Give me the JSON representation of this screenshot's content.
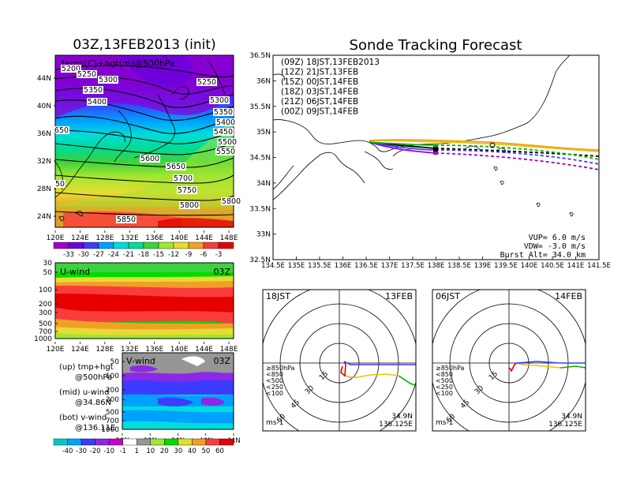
{
  "temp_map": {
    "title": "03Z,13FEB2013 (init)",
    "label": "temp(C)+hgt(m)@500hPa",
    "x_ticks": [
      "120E",
      "124E",
      "128E",
      "132E",
      "136E",
      "140E",
      "144E",
      "148E"
    ],
    "y_ticks": [
      "24N",
      "28N",
      "32N",
      "36N",
      "40N",
      "44N"
    ],
    "contour_labels": [
      "5200",
      "5250",
      "5300",
      "5350",
      "5400",
      "5250",
      "5300",
      "5350",
      "5400",
      "5450",
      "5500",
      "5550",
      "5600",
      "5650",
      "5700",
      "5750",
      "5800",
      "5850",
      "5800",
      "650",
      "50"
    ],
    "colorbar": [
      "-33",
      "-30",
      "-27",
      "-24",
      "-21",
      "-18",
      "-15",
      "-12",
      "-9",
      "-6",
      "-3"
    ],
    "colors": [
      "#a000c8",
      "#6e00dc",
      "#3c3cff",
      "#00a0ff",
      "#00dcdc",
      "#00dc96",
      "#3cd23c",
      "#a0e632",
      "#e6dc32",
      "#f0a028",
      "#fa3c3c",
      "#e60000"
    ]
  },
  "uwind": {
    "label": "U-wind",
    "time": "03Z",
    "x_ticks": [
      "120E",
      "124E",
      "128E",
      "132E",
      "136E",
      "140E",
      "144E",
      "148E"
    ],
    "y_ticks": [
      "30",
      "50",
      "100",
      "200",
      "300",
      "500",
      "700",
      "1000"
    ]
  },
  "vwind": {
    "label": "V-wind",
    "time": "03Z",
    "x_ticks": [
      "28N",
      "32N",
      "36N",
      "40N",
      "44N"
    ],
    "y_ticks": [
      "50",
      "100",
      "200",
      "300",
      "500",
      "700",
      "1000"
    ]
  },
  "legend_text": {
    "up1": "(up) tmp+hgt",
    "up2": "@500hPa",
    "mid1": "(mid) u-wind",
    "mid2": "@34.86N",
    "bot1": "(bot) v-wind",
    "bot2": "@136.11E"
  },
  "wind_colorbar": {
    "labels": [
      "-40",
      "-30",
      "-20",
      "-10",
      "-1",
      "1",
      "10",
      "20",
      "30",
      "40",
      "50",
      "60"
    ],
    "colors": [
      "#00c8c8",
      "#00a0ff",
      "#3c3cff",
      "#8c28e6",
      "#c800c8",
      "#969696",
      "#a0e632",
      "#00dc00",
      "#e6dc32",
      "#f0a028",
      "#fa3c3c",
      "#e60000"
    ]
  },
  "tracking": {
    "title": "Sonde Tracking Forecast",
    "x_ticks": [
      "134.5E",
      "135E",
      "135.5E",
      "136E",
      "136.5E",
      "137E",
      "137.5E",
      "138E",
      "138.5E",
      "139E",
      "139.5E",
      "140E",
      "140.5E",
      "141E",
      "141.5E"
    ],
    "y_ticks": [
      "36.5N",
      "36N",
      "35.5N",
      "35N",
      "34.5N",
      "34N",
      "33.5N",
      "33N",
      "32.5N"
    ],
    "legend": [
      {
        "label": "(09Z)  18JST,13FEB2013",
        "color": "#000000"
      },
      {
        "label": "(12Z)  21JST,13FEB",
        "color": "#a000c8"
      },
      {
        "label": "(15Z)  00JST,14FEB",
        "color": "#3c3cff"
      },
      {
        "label": "(18Z)  03JST,14FEB",
        "color": "#00b400"
      },
      {
        "label": "(21Z)  06JST,14FEB",
        "color": "#e6c800"
      },
      {
        "label": "(00Z)  09JST,14FEB",
        "color": "#f0a028"
      }
    ],
    "vup": "VUP=  6.0  m/s",
    "vdw": "VDW= -3.0  m/s",
    "burst": "Burst Alt= 34.0  km"
  },
  "hodo1": {
    "time": "18JST",
    "date": "13FEB",
    "rings": [
      "15",
      "30",
      "45",
      "60"
    ],
    "levels": [
      "≥850hPa",
      "<850",
      "<500",
      "<250",
      "<100"
    ],
    "level_colors": [
      "#e60000",
      "#f0a028",
      "#e6c800",
      "#00b400",
      "#3c3cff"
    ],
    "unit": "ms-1",
    "lat": "34.9N",
    "lon": "136.125E"
  },
  "hodo2": {
    "time": "06JST",
    "date": "14FEB",
    "rings": [
      "15",
      "30",
      "45",
      "60"
    ],
    "levels": [
      "≥850hPa",
      "<850",
      "<500",
      "<250",
      "<100"
    ],
    "level_colors": [
      "#e60000",
      "#f0a028",
      "#e6c800",
      "#00b400",
      "#3c3cff"
    ],
    "unit": "ms-1",
    "lat": "34.9N",
    "lon": "136.125E"
  }
}
